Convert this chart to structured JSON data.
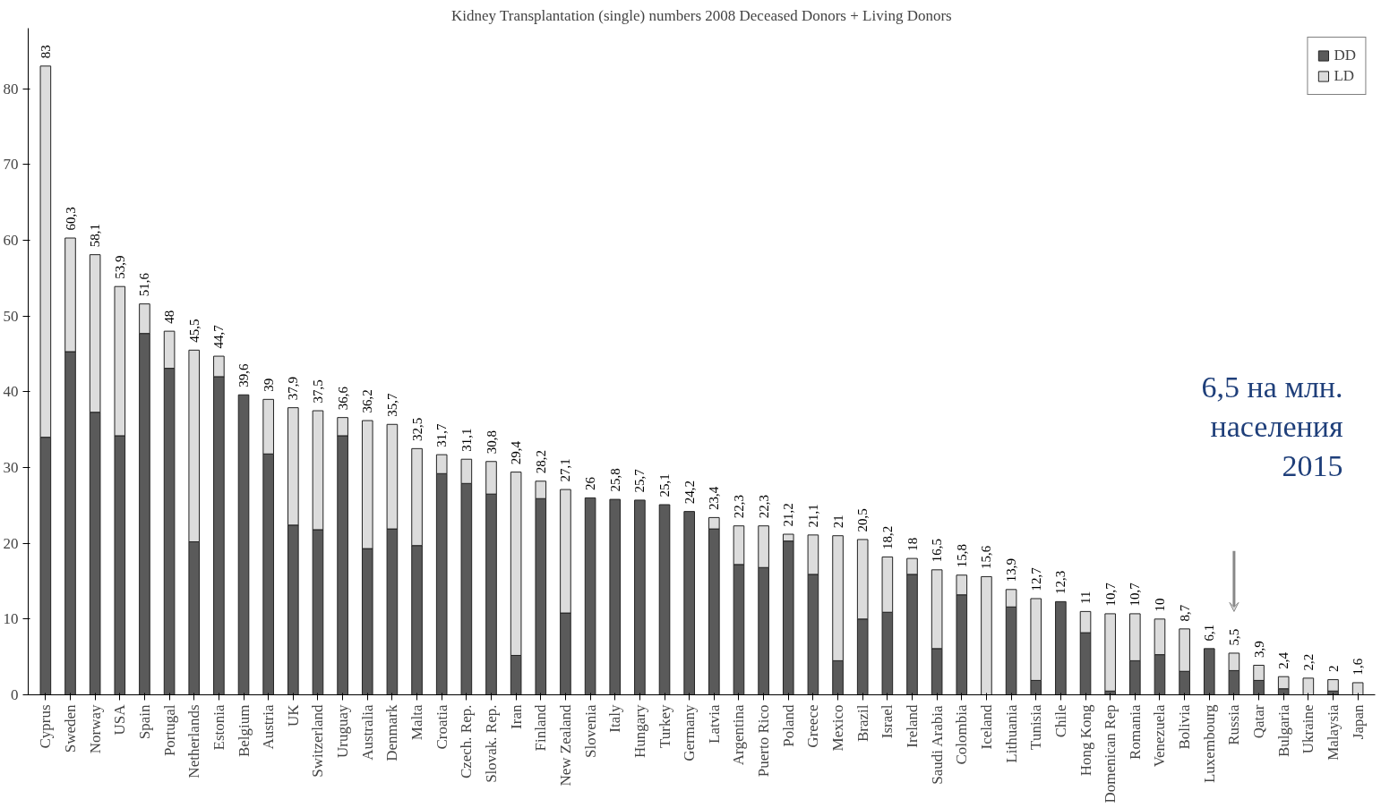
{
  "chart_data": {
    "type": "bar",
    "title": "Kidney Transplantation (single) numbers 2008 Deceased Donors + Living Donors",
    "categories": [
      "Cyprus",
      "Sweden",
      "Norway",
      "USA",
      "Spain",
      "Portugal",
      "Netherlands",
      "Estonia",
      "Belgium",
      "Austria",
      "UK",
      "Switzerland",
      "Uruguay",
      "Australia",
      "Denmark",
      "Malta",
      "Croatia",
      "Czech. Rep.",
      "Slovak. Rep.",
      "Iran",
      "Finland",
      "New Zealand",
      "Slovenia",
      "Italy",
      "Hungary",
      "Turkey",
      "Germany",
      "Latvia",
      "Argentina",
      "Puerto Rico",
      "Poland",
      "Greece",
      "Mexico",
      "Brazil",
      "Israel",
      "Ireland",
      "Saudi Arabia",
      "Colombia",
      "Iceland",
      "Lithuania",
      "Tunisia",
      "Chile",
      "Hong Kong",
      "Domenican Rep",
      "Romania",
      "Venezuela",
      "Bolivia",
      "Luxembourg",
      "Russia",
      "Qatar",
      "Bulgaria",
      "Ukraine",
      "Malaysia",
      "Japan"
    ],
    "stacked": true,
    "series": [
      {
        "name": "DD",
        "color": "#5a5a5a",
        "values": [
          34,
          45.3,
          37.3,
          34.2,
          47.7,
          43.1,
          20.2,
          42,
          39.6,
          31.8,
          22.4,
          21.8,
          34.2,
          19.3,
          21.9,
          19.7,
          29.2,
          27.9,
          26.5,
          5.2,
          25.9,
          10.8,
          26,
          25.8,
          25.7,
          25.1,
          24.2,
          21.9,
          17.2,
          16.8,
          20.3,
          15.9,
          4.5,
          10,
          10.9,
          15.9,
          6.1,
          13.2,
          0,
          11.6,
          1.9,
          12.3,
          8.2,
          0.5,
          4.5,
          5.3,
          3.1,
          6.1,
          3.2,
          1.9,
          0.8,
          0,
          0.5,
          0
        ]
      },
      {
        "name": "LD",
        "color": "#dcdcdc",
        "values": [
          49,
          15,
          20.8,
          19.7,
          3.9,
          4.9,
          25.3,
          2.7,
          0,
          7.2,
          15.5,
          15.7,
          2.4,
          16.9,
          13.8,
          12.8,
          2.5,
          3.2,
          4.3,
          24.2,
          2.3,
          16.3,
          0,
          0,
          0,
          0,
          0,
          1.5,
          5.1,
          5.5,
          0.9,
          5.2,
          16.5,
          10.5,
          7.3,
          2.1,
          10.4,
          2.6,
          15.6,
          2.3,
          10.8,
          0,
          2.8,
          10.2,
          6.2,
          4.7,
          5.6,
          0,
          2.3,
          2,
          1.6,
          2.2,
          1.5,
          1.6
        ]
      }
    ],
    "totals": [
      "83",
      "60,3",
      "58,1",
      "53,9",
      "51,6",
      "48",
      "45,5",
      "44,7",
      "39,6",
      "39",
      "37,9",
      "37,5",
      "36,6",
      "36,2",
      "35,7",
      "32,5",
      "31,7",
      "31,1",
      "30,8",
      "29,4",
      "28,2",
      "27,1",
      "26",
      "25,8",
      "25,7",
      "25,1",
      "24,2",
      "23,4",
      "22,3",
      "22,3",
      "21,2",
      "21,1",
      "21",
      "20,5",
      "18,2",
      "18",
      "16,5",
      "15,8",
      "15,6",
      "13,9",
      "12,7",
      "12,3",
      "11",
      "10,7",
      "10,7",
      "10",
      "8,7",
      "6,1",
      "5,5",
      "3,9",
      "2,4",
      "2,2",
      "2",
      "1,6"
    ],
    "ylim": [
      0,
      88
    ],
    "yticks": [
      0,
      10,
      20,
      30,
      40,
      50,
      60,
      70,
      80
    ],
    "grid": false,
    "legend": "top right",
    "annotations": [
      "6,5 на млн.\nнаселения\n2015"
    ]
  }
}
